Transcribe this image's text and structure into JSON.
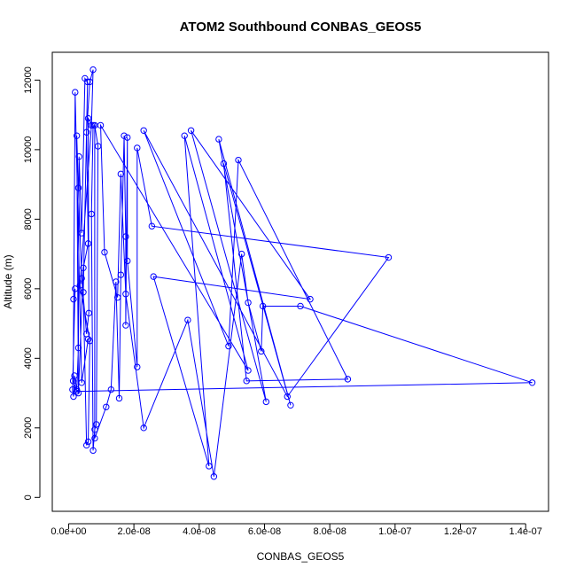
{
  "chart_data": {
    "type": "line",
    "title": "ATOM2 Southbound CONBAS_GEOS5",
    "xlabel": "CONBAS_GEOS5",
    "ylabel": "Altitude (m)",
    "xlim": [
      -5e-09,
      1.47e-07
    ],
    "ylim": [
      -400,
      12800
    ],
    "xticks": [
      0,
      2e-08,
      4e-08,
      6e-08,
      8e-08,
      1e-07,
      1.2e-07,
      1.4e-07
    ],
    "xtick_labels": [
      "0.0e+00",
      "2.0e-08",
      "4.0e-08",
      "6.0e-08",
      "8.0e-08",
      "1.0e-07",
      "1.2e-07",
      "1.4e-07"
    ],
    "yticks": [
      0,
      2000,
      4000,
      6000,
      8000,
      10000,
      12000
    ],
    "ytick_labels": [
      "0",
      "2000",
      "4000",
      "6000",
      "8000",
      "10000",
      "12000"
    ],
    "grid": false,
    "colors": {
      "series": "#0000ff",
      "axes": "#000000"
    },
    "series": [
      {
        "marker": "open-circle",
        "points": [
          [
            1.5e-09,
            5700
          ],
          [
            2e-09,
            6000
          ],
          [
            1.2e-09,
            3100
          ],
          [
            1.5e-09,
            2900
          ],
          [
            1.8e-09,
            3500
          ],
          [
            2.5e-09,
            3100
          ],
          [
            3e-09,
            4300
          ],
          [
            3.2e-09,
            9800
          ],
          [
            4e-09,
            7600
          ],
          [
            5e-09,
            12050
          ],
          [
            5.8e-09,
            11950
          ],
          [
            4.5e-09,
            5900
          ],
          [
            5.5e-09,
            1500
          ],
          [
            6e-09,
            1600
          ],
          [
            6.5e-09,
            4500
          ],
          [
            3.5e-09,
            6100
          ],
          [
            7e-09,
            10700
          ],
          [
            7.5e-09,
            12300
          ],
          [
            6.5e-09,
            11950
          ],
          [
            5.5e-09,
            10500
          ],
          [
            6e-09,
            7300
          ],
          [
            4.5e-09,
            6600
          ],
          [
            3e-09,
            3000
          ],
          [
            2.5e-09,
            10400
          ],
          [
            3e-09,
            8900
          ],
          [
            4e-09,
            6300
          ],
          [
            5.5e-09,
            4700
          ],
          [
            6.2e-09,
            5300
          ],
          [
            6e-09,
            10900
          ],
          [
            7.5e-09,
            10700
          ],
          [
            7e-09,
            8150
          ],
          [
            7.5e-09,
            1350
          ],
          [
            8e-09,
            1950
          ],
          [
            8.5e-09,
            2100
          ],
          [
            9e-09,
            10100
          ],
          [
            8e-09,
            10700
          ],
          [
            8e-09,
            1700
          ],
          [
            1.15e-08,
            2600
          ],
          [
            1.3e-08,
            3100
          ],
          [
            1.45e-08,
            6200
          ],
          [
            1.55e-08,
            2850
          ],
          [
            1.6e-08,
            6400
          ],
          [
            1.7e-08,
            10400
          ],
          [
            1.75e-08,
            7500
          ],
          [
            1.75e-08,
            4950
          ],
          [
            1.8e-08,
            10350
          ],
          [
            1.8e-08,
            6800
          ],
          [
            2.1e-08,
            3750
          ],
          [
            2.1e-08,
            10050
          ],
          [
            2.55e-08,
            7800
          ],
          [
            9.8e-08,
            6900
          ],
          [
            6.7e-08,
            2900
          ],
          [
            2.3e-08,
            10550
          ],
          [
            4.9e-08,
            4350
          ],
          [
            5.2e-08,
            9700
          ],
          [
            8.55e-08,
            3400
          ],
          [
            5.45e-08,
            3350
          ],
          [
            4.75e-08,
            9600
          ],
          [
            6.8e-08,
            2650
          ],
          [
            4.6e-08,
            10300
          ],
          [
            6.05e-08,
            2750
          ],
          [
            3.75e-08,
            10550
          ],
          [
            7.4e-08,
            5700
          ],
          [
            2.6e-08,
            6350
          ],
          [
            4.3e-08,
            900
          ],
          [
            3.55e-08,
            10400
          ],
          [
            5.5e-08,
            3650
          ],
          [
            9.8e-09,
            10700
          ],
          [
            1.1e-08,
            7050
          ],
          [
            1.5e-08,
            5750
          ],
          [
            1.6e-08,
            9300
          ],
          [
            1.75e-08,
            5850
          ],
          [
            2.3e-08,
            2000
          ],
          [
            3.65e-08,
            5100
          ],
          [
            4.45e-08,
            600
          ],
          [
            5.3e-08,
            7000
          ],
          [
            5.5e-08,
            5600
          ],
          [
            5.9e-08,
            4200
          ],
          [
            5.95e-08,
            5500
          ],
          [
            7.1e-08,
            5500
          ],
          [
            1.42e-07,
            3300
          ],
          [
            2.5e-09,
            3050
          ],
          [
            1.4e-09,
            3350
          ],
          [
            2e-09,
            11650
          ],
          [
            4e-09,
            3300
          ],
          [
            6e-09,
            4550
          ]
        ]
      }
    ]
  }
}
